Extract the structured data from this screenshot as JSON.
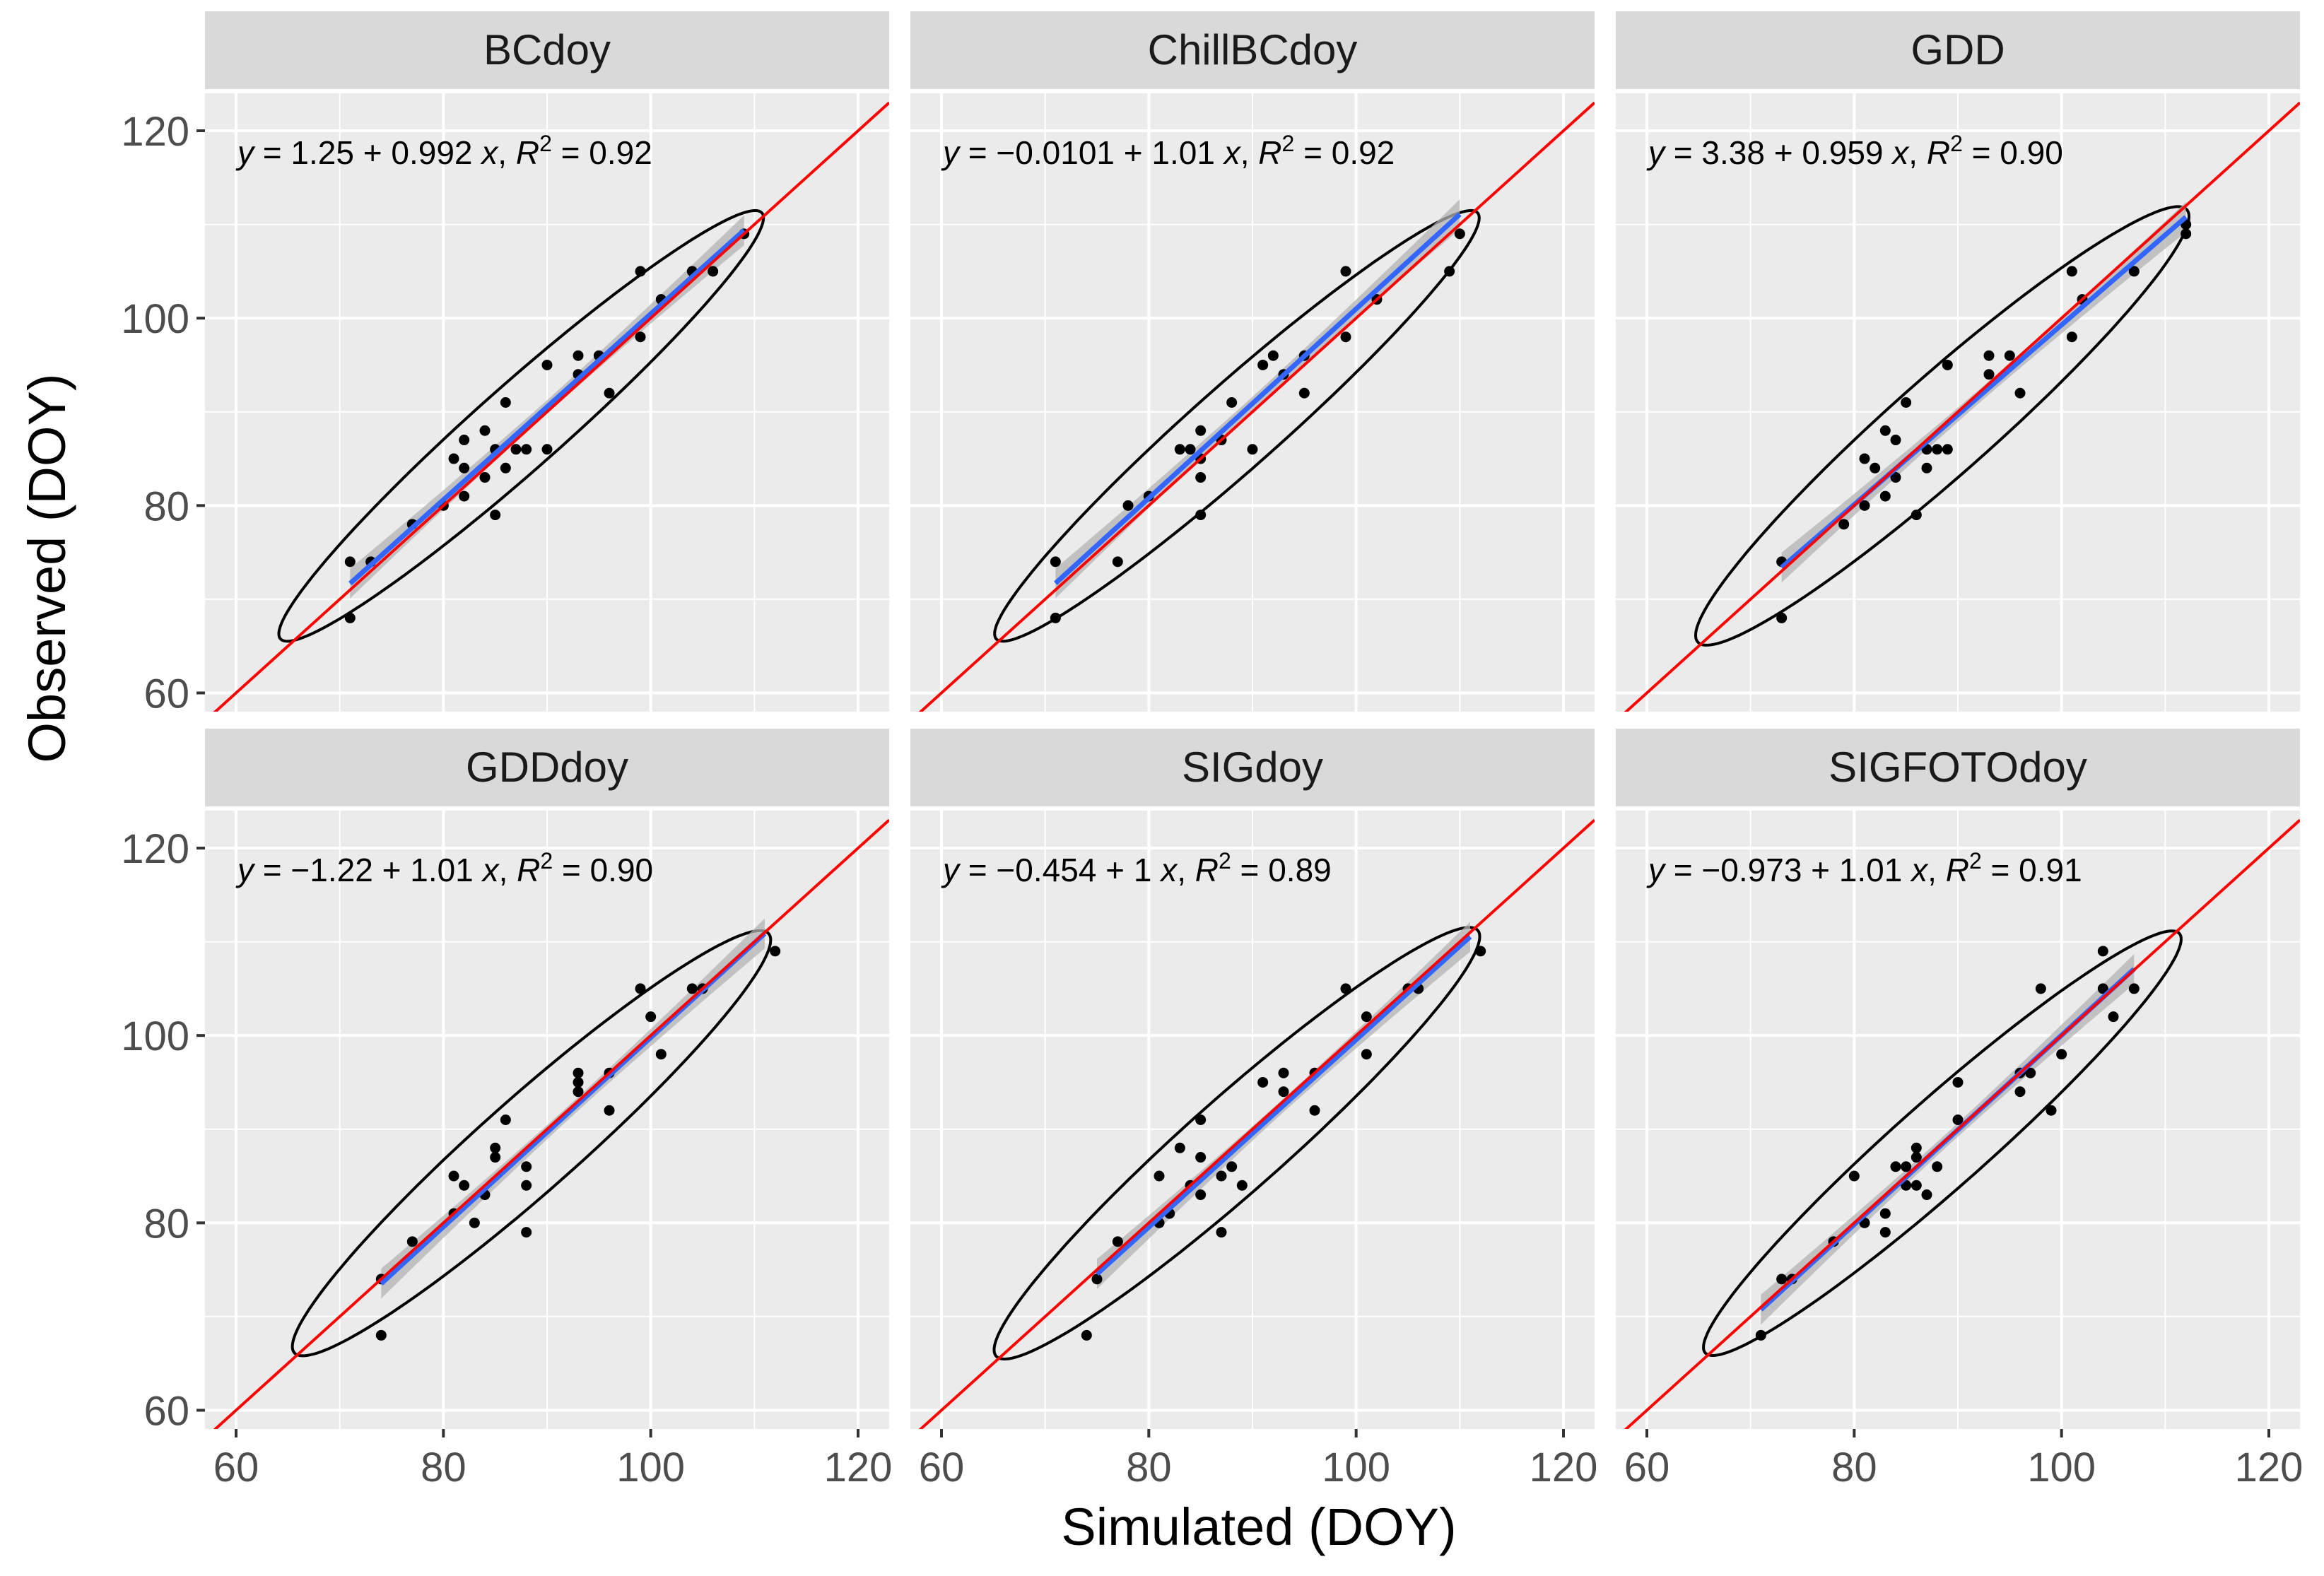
{
  "figure": {
    "xlabel": "Simulated (DOY)",
    "ylabel": "Observed (DOY)",
    "colors": {
      "panel_bg": "#ebebeb",
      "strip_bg": "#d9d9d9",
      "grid": "#ffffff",
      "point": "#000000",
      "identity_line": "#ff0000",
      "fit_line": "#3366ff",
      "confidence_band": "#b3b3b3",
      "ellipse": "#000000",
      "tick_text": "#4d4d4d"
    }
  },
  "chart_data": [
    {
      "type": "scatter",
      "title": "BCdoy",
      "equation": {
        "intercept": "1.25",
        "slope": "0.992",
        "r2": "0.92"
      },
      "xlim": [
        57,
        123
      ],
      "ylim": [
        58,
        124
      ],
      "xticks": [
        60,
        80,
        100,
        120
      ],
      "yticks": [
        60,
        80,
        100,
        120
      ],
      "identity_line": {
        "intercept": 0,
        "slope": 1
      },
      "fit": {
        "intercept": 1.25,
        "slope": 0.992,
        "x_range": [
          71,
          109
        ],
        "band_width": 1.6
      },
      "ellipse": {
        "center": [
          87.5,
          88.5
        ],
        "angle_deg": 44.5,
        "semi_major": 32.5,
        "semi_minor": 4.3
      },
      "points": [
        [
          71,
          74
        ],
        [
          71,
          68
        ],
        [
          73,
          74
        ],
        [
          77,
          78
        ],
        [
          80,
          80
        ],
        [
          81,
          85
        ],
        [
          82,
          87
        ],
        [
          82,
          81
        ],
        [
          82,
          84
        ],
        [
          84,
          88
        ],
        [
          84,
          83
        ],
        [
          85,
          86
        ],
        [
          85,
          79
        ],
        [
          86,
          91
        ],
        [
          86,
          84
        ],
        [
          87,
          86
        ],
        [
          88,
          86
        ],
        [
          90,
          95
        ],
        [
          90,
          86
        ],
        [
          93,
          94
        ],
        [
          93,
          96
        ],
        [
          95,
          96
        ],
        [
          96,
          92
        ],
        [
          99,
          105
        ],
        [
          99,
          98
        ],
        [
          101,
          102
        ],
        [
          104,
          105
        ],
        [
          106,
          105
        ],
        [
          109,
          109
        ]
      ]
    },
    {
      "type": "scatter",
      "title": "ChillBCdoy",
      "equation": {
        "intercept": "−0.0101",
        "slope": "1.01",
        "r2": "0.92"
      },
      "xlim": [
        57,
        123
      ],
      "ylim": [
        58,
        124
      ],
      "xticks": [
        60,
        80,
        100,
        120
      ],
      "yticks": [
        60,
        80,
        100,
        120
      ],
      "identity_line": {
        "intercept": 0,
        "slope": 1
      },
      "fit": {
        "intercept": -0.0101,
        "slope": 1.01,
        "x_range": [
          71,
          110
        ],
        "band_width": 1.6
      },
      "ellipse": {
        "center": [
          88.5,
          88.5
        ],
        "angle_deg": 44.5,
        "semi_major": 32.5,
        "semi_minor": 4.3
      },
      "points": [
        [
          71,
          74
        ],
        [
          71,
          68
        ],
        [
          77,
          74
        ],
        [
          78,
          80
        ],
        [
          80,
          81
        ],
        [
          83,
          86
        ],
        [
          84,
          86
        ],
        [
          85,
          85
        ],
        [
          85,
          88
        ],
        [
          85,
          83
        ],
        [
          85,
          79
        ],
        [
          87,
          87
        ],
        [
          88,
          91
        ],
        [
          90,
          86
        ],
        [
          91,
          95
        ],
        [
          92,
          96
        ],
        [
          93,
          94
        ],
        [
          95,
          96
        ],
        [
          95,
          92
        ],
        [
          99,
          105
        ],
        [
          99,
          98
        ],
        [
          102,
          102
        ],
        [
          109,
          105
        ],
        [
          110,
          109
        ]
      ]
    },
    {
      "type": "scatter",
      "title": "GDD",
      "equation": {
        "intercept": "3.38",
        "slope": "0.959",
        "r2": "0.90"
      },
      "xlim": [
        57,
        123
      ],
      "ylim": [
        58,
        124
      ],
      "xticks": [
        60,
        80,
        100,
        120
      ],
      "yticks": [
        60,
        80,
        100,
        120
      ],
      "identity_line": {
        "intercept": 0,
        "slope": 1
      },
      "fit": {
        "intercept": 3.38,
        "slope": 0.959,
        "x_range": [
          73,
          112
        ],
        "band_width": 1.6
      },
      "ellipse": {
        "center": [
          88.5,
          88.5
        ],
        "angle_deg": 44.5,
        "semi_major": 33,
        "semi_minor": 5
      },
      "points": [
        [
          73,
          74
        ],
        [
          73,
          68
        ],
        [
          79,
          78
        ],
        [
          81,
          85
        ],
        [
          81,
          80
        ],
        [
          82,
          84
        ],
        [
          83,
          88
        ],
        [
          83,
          81
        ],
        [
          84,
          87
        ],
        [
          84,
          83
        ],
        [
          85,
          91
        ],
        [
          86,
          79
        ],
        [
          87,
          86
        ],
        [
          87,
          84
        ],
        [
          88,
          86
        ],
        [
          89,
          86
        ],
        [
          89,
          95
        ],
        [
          93,
          94
        ],
        [
          93,
          96
        ],
        [
          95,
          96
        ],
        [
          96,
          92
        ],
        [
          101,
          105
        ],
        [
          101,
          98
        ],
        [
          102,
          102
        ],
        [
          107,
          105
        ],
        [
          112,
          109
        ],
        [
          112,
          110
        ]
      ]
    },
    {
      "type": "scatter",
      "title": "GDDdoy",
      "equation": {
        "intercept": "−1.22",
        "slope": "1.01",
        "r2": "0.90"
      },
      "xlim": [
        57,
        123
      ],
      "ylim": [
        58,
        124
      ],
      "xticks": [
        60,
        80,
        100,
        120
      ],
      "yticks": [
        60,
        80,
        100,
        120
      ],
      "identity_line": {
        "intercept": 0,
        "slope": 1
      },
      "fit": {
        "intercept": -1.22,
        "slope": 1.01,
        "x_range": [
          74,
          111
        ],
        "band_width": 1.6
      },
      "ellipse": {
        "center": [
          88.5,
          88.5
        ],
        "angle_deg": 44.5,
        "semi_major": 32,
        "semi_minor": 4.8
      },
      "points": [
        [
          74,
          74
        ],
        [
          74,
          68
        ],
        [
          77,
          78
        ],
        [
          81,
          85
        ],
        [
          81,
          81
        ],
        [
          82,
          84
        ],
        [
          83,
          80
        ],
        [
          84,
          83
        ],
        [
          85,
          87
        ],
        [
          85,
          88
        ],
        [
          86,
          91
        ],
        [
          88,
          86
        ],
        [
          88,
          84
        ],
        [
          88,
          79
        ],
        [
          93,
          96
        ],
        [
          93,
          95
        ],
        [
          93,
          94
        ],
        [
          96,
          96
        ],
        [
          96,
          92
        ],
        [
          99,
          105
        ],
        [
          100,
          102
        ],
        [
          101,
          98
        ],
        [
          104,
          105
        ],
        [
          105,
          105
        ],
        [
          112,
          109
        ]
      ]
    },
    {
      "type": "scatter",
      "title": "SIGdoy",
      "equation": {
        "intercept": "−0.454",
        "slope": "1",
        "r2": "0.89"
      },
      "xlim": [
        57,
        123
      ],
      "ylim": [
        58,
        124
      ],
      "xticks": [
        60,
        80,
        100,
        120
      ],
      "yticks": [
        60,
        80,
        100,
        120
      ],
      "identity_line": {
        "intercept": 0,
        "slope": 1
      },
      "fit": {
        "intercept": -0.454,
        "slope": 1.0,
        "x_range": [
          75,
          111
        ],
        "band_width": 1.6
      },
      "ellipse": {
        "center": [
          88.5,
          88.5
        ],
        "angle_deg": 44.5,
        "semi_major": 32.5,
        "semi_minor": 4.8
      },
      "points": [
        [
          74,
          68
        ],
        [
          75,
          74
        ],
        [
          77,
          78
        ],
        [
          81,
          85
        ],
        [
          81,
          80
        ],
        [
          82,
          81
        ],
        [
          83,
          88
        ],
        [
          84,
          84
        ],
        [
          85,
          91
        ],
        [
          85,
          87
        ],
        [
          85,
          83
        ],
        [
          87,
          79
        ],
        [
          87,
          85
        ],
        [
          88,
          86
        ],
        [
          89,
          84
        ],
        [
          91,
          95
        ],
        [
          93,
          96
        ],
        [
          93,
          94
        ],
        [
          96,
          92
        ],
        [
          96,
          96
        ],
        [
          99,
          105
        ],
        [
          101,
          102
        ],
        [
          101,
          98
        ],
        [
          105,
          105
        ],
        [
          106,
          105
        ],
        [
          112,
          109
        ]
      ]
    },
    {
      "type": "scatter",
      "title": "SIGFOTOdoy",
      "equation": {
        "intercept": "−0.973",
        "slope": "1.01",
        "r2": "0.91"
      },
      "xlim": [
        57,
        123
      ],
      "ylim": [
        58,
        124
      ],
      "xticks": [
        60,
        80,
        100,
        120
      ],
      "yticks": [
        60,
        80,
        100,
        120
      ],
      "identity_line": {
        "intercept": 0,
        "slope": 1
      },
      "fit": {
        "intercept": -0.973,
        "slope": 1.01,
        "x_range": [
          71,
          107
        ],
        "band_width": 1.6
      },
      "ellipse": {
        "center": [
          88.5,
          88.5
        ],
        "angle_deg": 44.5,
        "semi_major": 32,
        "semi_minor": 4.5
      },
      "points": [
        [
          71,
          68
        ],
        [
          73,
          74
        ],
        [
          74,
          74
        ],
        [
          78,
          78
        ],
        [
          80,
          85
        ],
        [
          81,
          80
        ],
        [
          83,
          81
        ],
        [
          83,
          79
        ],
        [
          84,
          86
        ],
        [
          85,
          84
        ],
        [
          85,
          86
        ],
        [
          86,
          88
        ],
        [
          86,
          87
        ],
        [
          86,
          84
        ],
        [
          87,
          83
        ],
        [
          88,
          86
        ],
        [
          90,
          95
        ],
        [
          90,
          91
        ],
        [
          96,
          96
        ],
        [
          96,
          94
        ],
        [
          97,
          96
        ],
        [
          98,
          105
        ],
        [
          99,
          92
        ],
        [
          100,
          98
        ],
        [
          104,
          105
        ],
        [
          104,
          109
        ],
        [
          105,
          102
        ],
        [
          107,
          105
        ]
      ]
    }
  ]
}
